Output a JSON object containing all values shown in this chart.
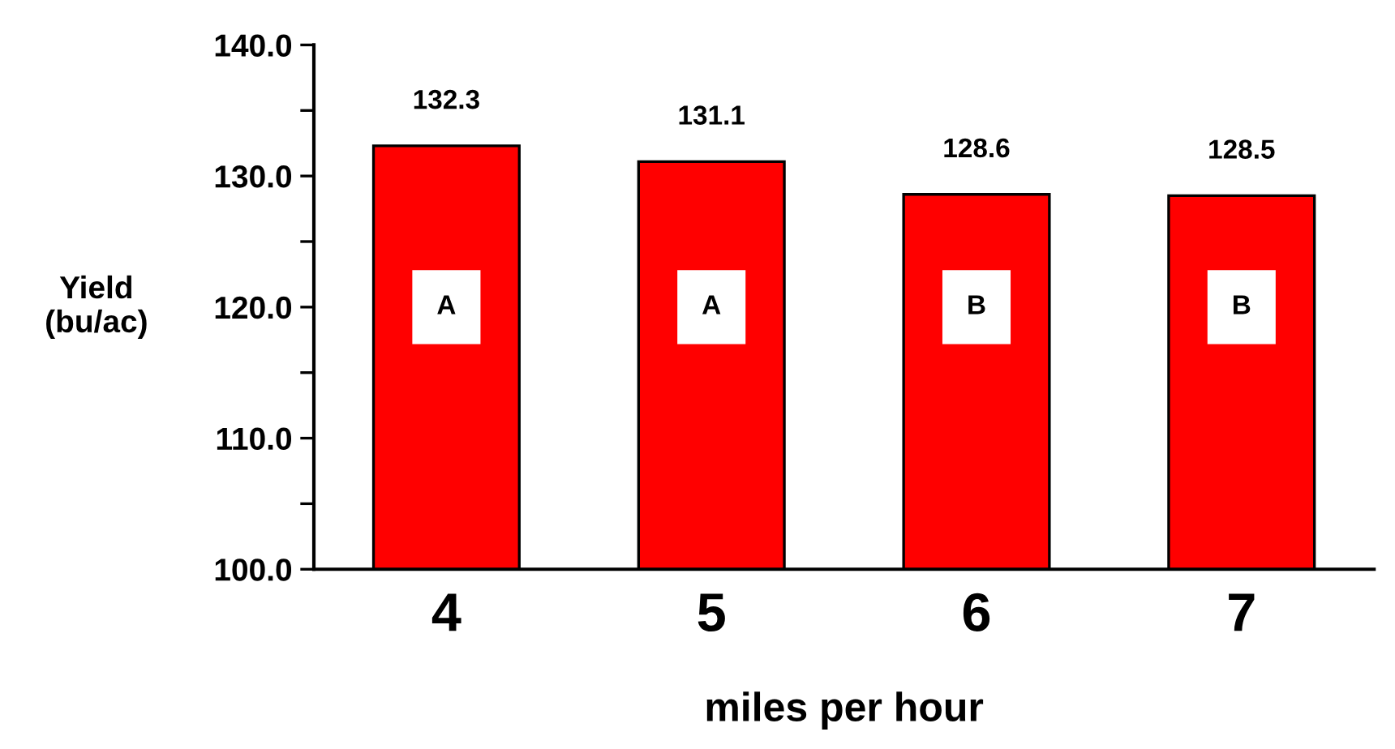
{
  "chart_data": {
    "type": "bar",
    "xlabel": "miles per hour",
    "ylabel": "Yield\n(bu/ac)",
    "categories": [
      "4",
      "5",
      "6",
      "7"
    ],
    "values": [
      132.3,
      131.1,
      128.6,
      128.5
    ],
    "color": "#ff0000",
    "ylim": [
      100,
      140
    ],
    "yticks": [
      {
        "value": 100,
        "label": "100.0"
      },
      {
        "value": 105,
        "label": null
      },
      {
        "value": 110,
        "label": "110.0"
      },
      {
        "value": 115,
        "label": null
      },
      {
        "value": 120,
        "label": "120.0"
      },
      {
        "value": 125,
        "label": null
      },
      {
        "value": 130,
        "label": "130.0"
      },
      {
        "value": 135,
        "label": null
      },
      {
        "value": 140,
        "label": "140.0"
      }
    ],
    "data_labels": true,
    "grid": false,
    "annotations": [
      "A",
      "A",
      "B",
      "B"
    ]
  }
}
